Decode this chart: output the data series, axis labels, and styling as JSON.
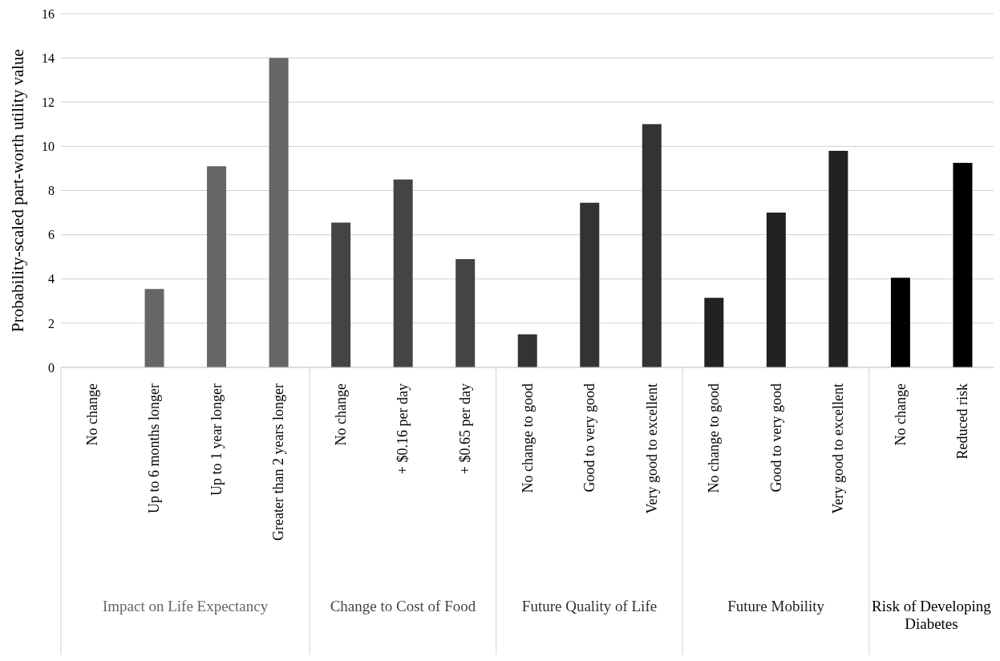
{
  "chart_data": {
    "type": "bar",
    "ylabel": "Probability-scaled part-worth utility value",
    "categories": [
      "No change",
      "Up to 6 months longer",
      "Up to 1 year longer",
      "Greater than 2 years longer",
      "No change",
      "+ $0.16 per day",
      "+ $0.65 per day",
      "No change to good",
      "Good to very good",
      "Very good to excellent",
      "No change to good",
      "Good to very good",
      "Very good to excellent",
      "No change",
      "Reduced risk"
    ],
    "series": [
      {
        "name": "Impact on Life Expectancy",
        "color": "#666666",
        "values": [
          0,
          3.55,
          9.1,
          14.0,
          null,
          null,
          null,
          null,
          null,
          null,
          null,
          null,
          null,
          null,
          null
        ]
      },
      {
        "name": "Change to Cost of Food",
        "color": "#444444",
        "values": [
          null,
          null,
          null,
          null,
          6.55,
          8.5,
          4.9,
          null,
          null,
          null,
          null,
          null,
          null,
          null,
          null
        ]
      },
      {
        "name": "Future Quality of Life",
        "color": "#333333",
        "values": [
          null,
          null,
          null,
          null,
          null,
          null,
          null,
          1.5,
          7.45,
          11.0,
          null,
          null,
          null,
          null,
          null
        ]
      },
      {
        "name": "Future Mobility",
        "color": "#222222",
        "values": [
          null,
          null,
          null,
          null,
          null,
          null,
          null,
          null,
          null,
          null,
          3.15,
          7.0,
          9.8,
          null,
          null
        ]
      },
      {
        "name": "Risk of Developing Diabetes",
        "color": "#000000",
        "values": [
          null,
          null,
          null,
          null,
          null,
          null,
          null,
          null,
          null,
          null,
          null,
          null,
          null,
          4.05,
          9.25
        ]
      }
    ],
    "ylim": [
      0,
      16
    ],
    "yticks": [
      0,
      2,
      4,
      6,
      8,
      10,
      12,
      14,
      16
    ],
    "grid": "y",
    "legend": false
  }
}
